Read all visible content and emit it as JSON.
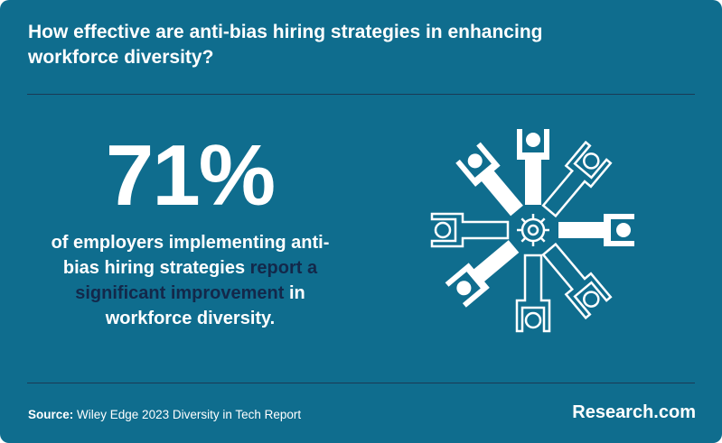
{
  "header": {
    "title": "How effective are anti-bias hiring strategies in enhancing workforce diversity?"
  },
  "stat": {
    "value": "71%",
    "description": {
      "before": "of employers implementing anti-bias hiring strategies ",
      "highlight": "report a significant improvement",
      "after": " in workforce diversity."
    }
  },
  "footer": {
    "source_label": "Source:",
    "source": "Wiley Edge 2023 Diversity in Tech Report",
    "brand": "Research.com"
  }
}
